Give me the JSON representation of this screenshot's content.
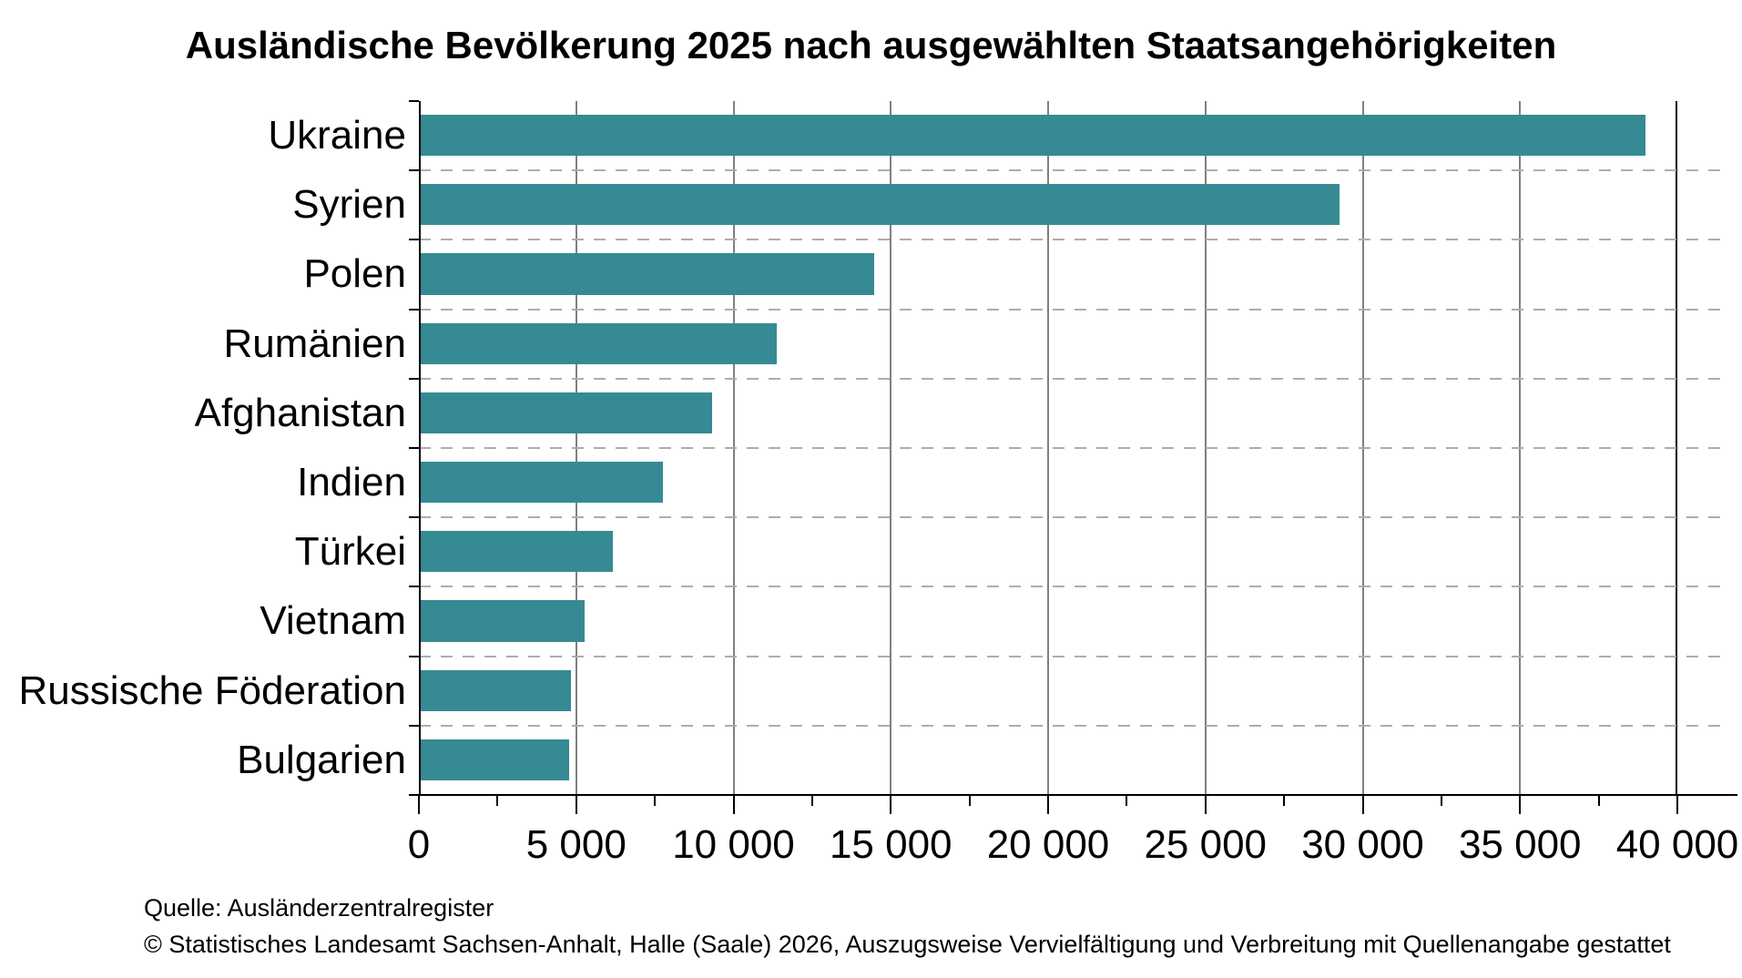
{
  "chart_data": {
    "type": "bar",
    "orientation": "horizontal",
    "title": "Ausländische Bevölkerung 2025 nach ausgewählten Staatsangehörigkeiten",
    "categories": [
      "Ukraine",
      "Syrien",
      "Polen",
      "Rumänien",
      "Afghanistan",
      "Indien",
      "Türkei",
      "Vietnam",
      "Russische Föderation",
      "Bulgarien"
    ],
    "values": [
      39000,
      29250,
      14470,
      11370,
      9310,
      7750,
      6170,
      5280,
      4820,
      4790
    ],
    "xlim": [
      0,
      40000
    ],
    "x_major_tick": 5000,
    "x_minor_tick": 2500,
    "x_tick_labels": [
      "0",
      "5 000",
      "10 000",
      "15 000",
      "20 000",
      "25 000",
      "30 000",
      "35 000",
      "40 000"
    ],
    "legend": "none",
    "grid": "solid vertical major gridlines; dashed horizontal row separators",
    "bar_color": "#368A93"
  },
  "colors": {
    "bar": "#368A93",
    "gridline": "#808080",
    "right_boundary": "#000000",
    "row_separator": "#ADADAD",
    "axis": "#000000",
    "background": "#ffffff",
    "text": "#000000"
  },
  "footer": {
    "source": "Quelle: Ausländerzentralregister",
    "copyright": "© Statistisches Landesamt Sachsen-Anhalt, Halle (Saale) 2026, Auszugsweise Vervielfältigung und Verbreitung mit Quellenangabe gestattet"
  }
}
